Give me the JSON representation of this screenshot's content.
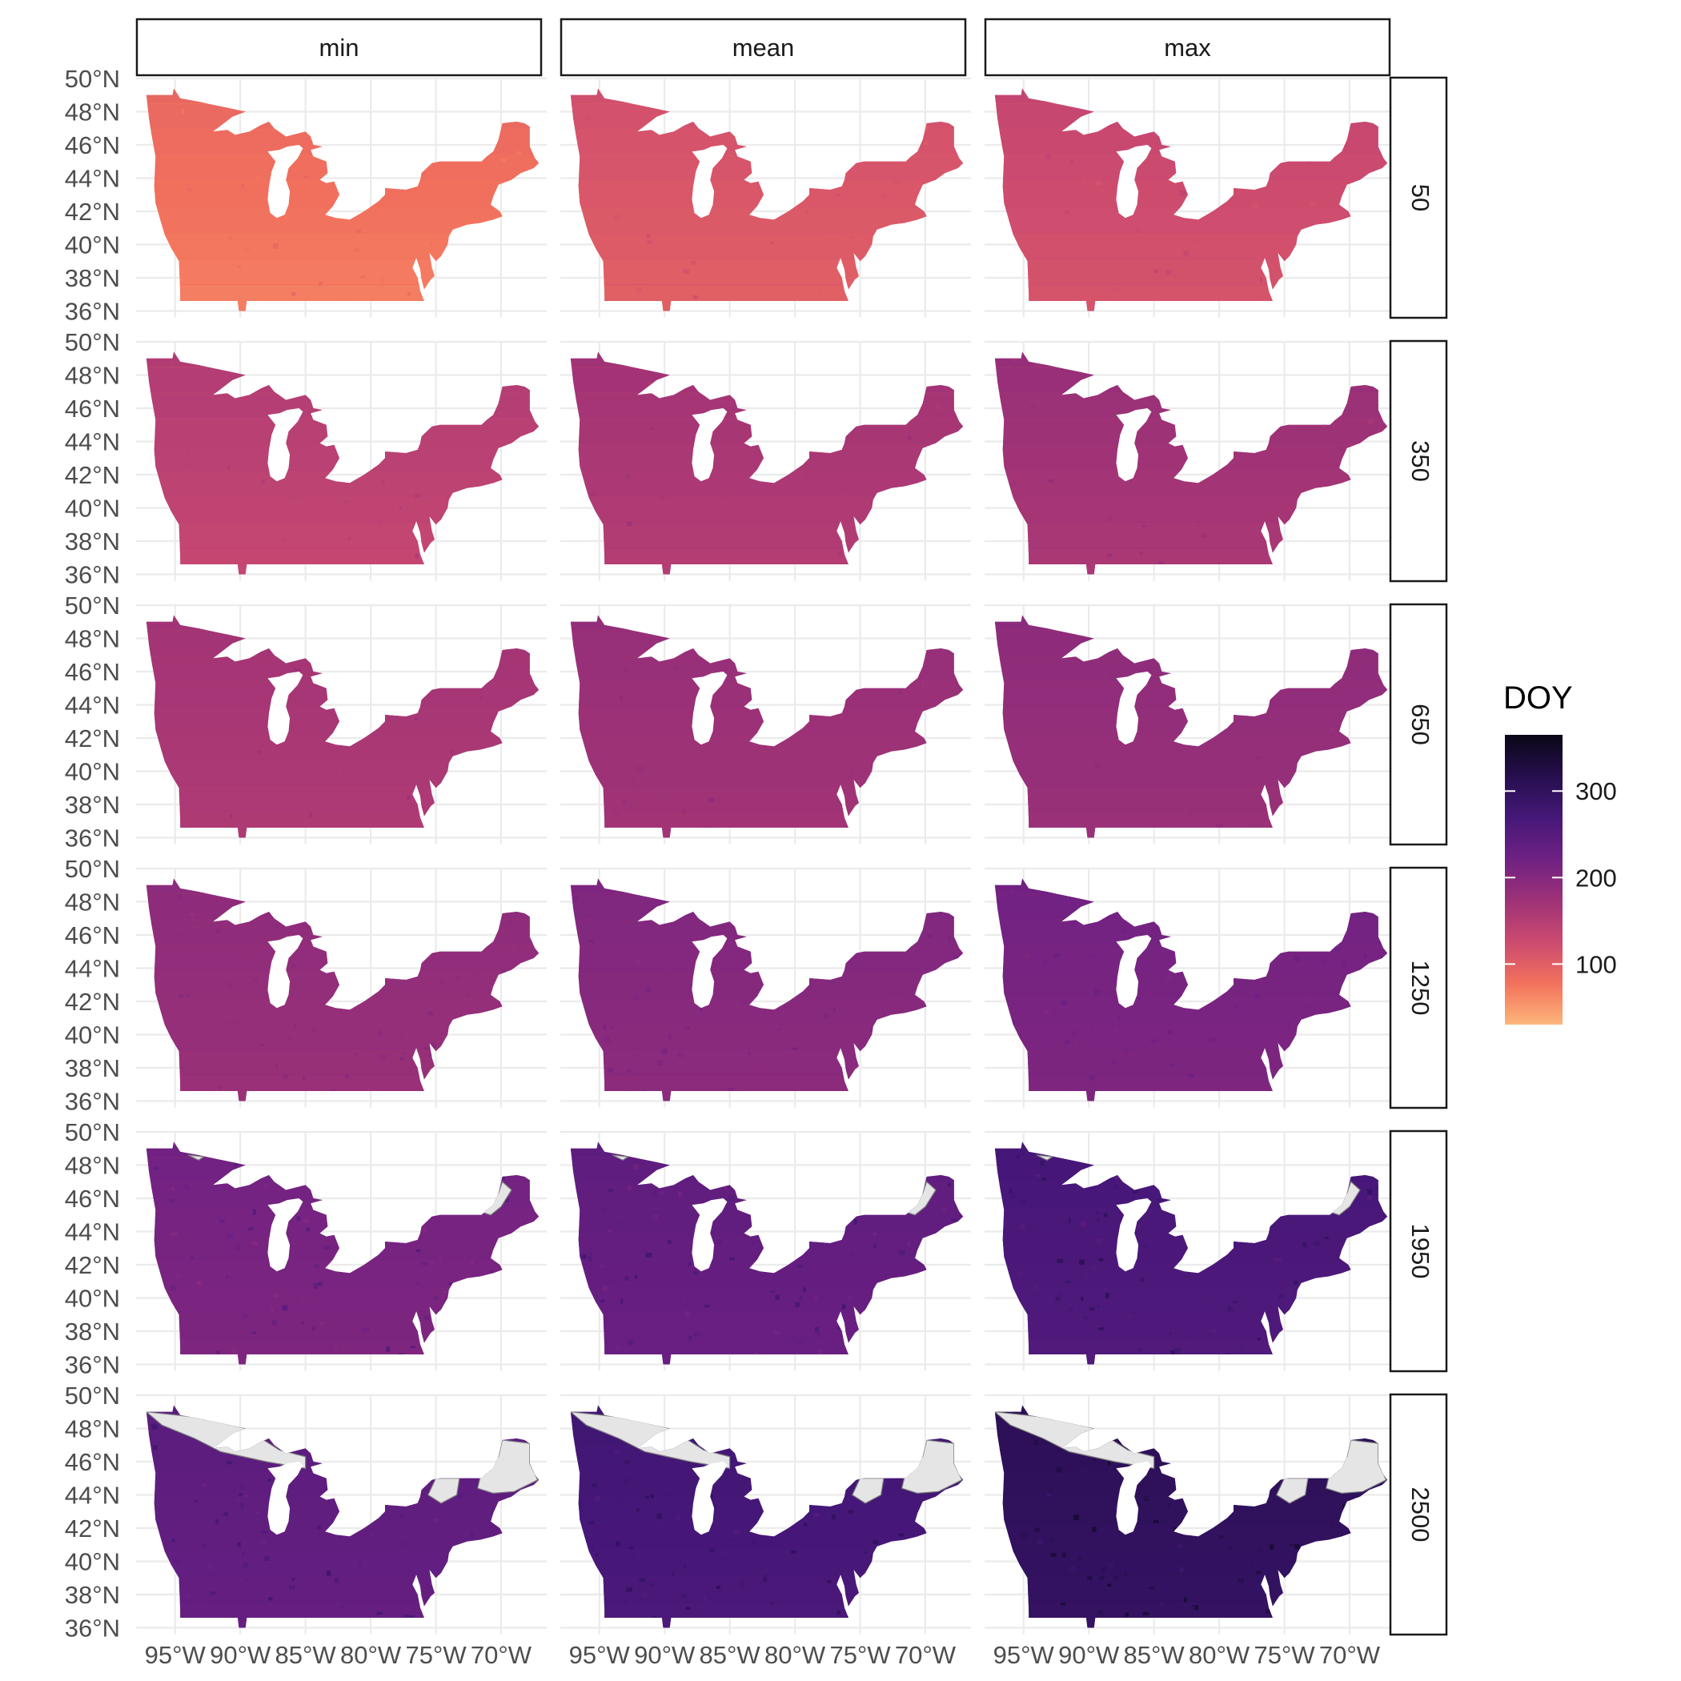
{
  "columns": [
    "min",
    "mean",
    "max"
  ],
  "rows": [
    "50",
    "350",
    "650",
    "1250",
    "1950",
    "2500"
  ],
  "y_ticks": [
    "50°N",
    "48°N",
    "46°N",
    "44°N",
    "42°N",
    "40°N",
    "38°N",
    "36°N"
  ],
  "x_ticks": [
    "95°W",
    "90°W",
    "85°W",
    "80°W",
    "75°W",
    "70°W"
  ],
  "legend": {
    "title": "DOY",
    "ticks": [
      "100",
      "200",
      "300"
    ],
    "tick_values": [
      100,
      200,
      300
    ],
    "range": [
      30,
      365
    ],
    "colormap": "magma",
    "colors_low_to_high": [
      "#fdb67b",
      "#f2715c",
      "#cb4a70",
      "#9e3277",
      "#6f2183",
      "#451878",
      "#260f4e",
      "#0a0716"
    ]
  },
  "map_extent": {
    "lon": [
      -97.5,
      -66.5
    ],
    "lat": [
      36,
      50
    ]
  },
  "panel_mean_doy": {
    "50": {
      "min": 78,
      "mean": 108,
      "max": 122
    },
    "350": {
      "min": 142,
      "mean": 160,
      "max": 170
    },
    "650": {
      "min": 162,
      "mean": 175,
      "max": 184
    },
    "1250": {
      "min": 184,
      "mean": 198,
      "max": 212
    },
    "1950": {
      "min": 212,
      "mean": 234,
      "max": 262
    },
    "2500": {
      "min": 238,
      "mean": 268,
      "max": 300
    }
  },
  "no_data_color": "#e5e5e5"
}
